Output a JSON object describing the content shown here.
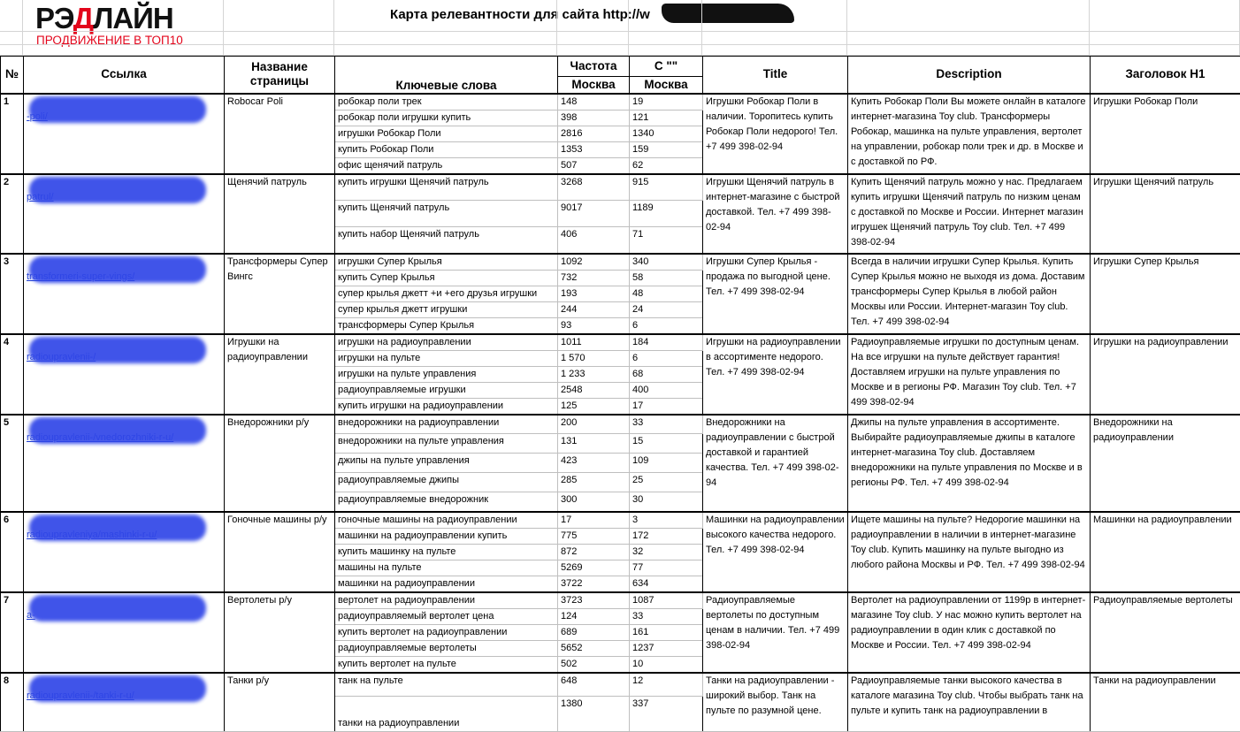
{
  "header": {
    "logo_part1": "РЭ",
    "logo_part2": "Д",
    "logo_part3": "ЛАЙН",
    "tagline": "ПРОДВИЖЕНИЕ В ТОП10",
    "title": "Карта релевантности для сайта http://w"
  },
  "table": {
    "columns": [
      "№",
      "Ссылка",
      "Название страницы",
      "Ключевые слова",
      "Частота",
      "С \"\"",
      "Title",
      "Description",
      "Заголовок H1"
    ],
    "subcolumns": [
      "Москва",
      "Москва"
    ],
    "rows": [
      {
        "num": "1",
        "link": "-poli/",
        "name": "Robocar Poli",
        "keywords": [
          [
            "робокар поли трек",
            "148",
            "19"
          ],
          [
            "робокар поли игрушки купить",
            "398",
            "121"
          ],
          [
            "игрушки Робокар Поли",
            "2816",
            "1340"
          ],
          [
            "купить Робокар Поли",
            "1353",
            "159"
          ],
          [
            "офис щенячий патруль",
            "507",
            "62"
          ]
        ],
        "title": "Игрушки Робокар Поли в наличии. Торопитесь купить Робокар Поли недорого! Тел. +7 499 398-02-94",
        "description": "Купить Робокар Поли Вы можете онлайн в каталоге интернет-магазина Toy club. Трансформеры Робокар, машинка на пульте управления, вертолет на управлении, робокар поли трек и др. в Москве и с доставкой по РФ.",
        "h1": "Игрушки Робокар Поли"
      },
      {
        "num": "2",
        "link": "patrul/",
        "name": "Щенячий патруль",
        "keywords": [
          [
            "купить игрушки Щенячий патруль",
            "3268",
            "915"
          ],
          [
            "купить Щенячий патруль",
            "9017",
            "1189"
          ],
          [
            "купить набор Щенячий патруль",
            "406",
            "71"
          ]
        ],
        "title": "Игрушки Щенячий патруль в интернет-магазине с быстрой доставкой. Тел. +7 499 398-02-94",
        "description": "Купить Щенячий патруль можно у нас. Предлагаем купить игрушки Щенячий патруль по низким ценам с доставкой по Москве и России. Интернет магазин игрушек Щенячий патруль Toy club. Тел. +7 499 398-02-94",
        "h1": "Игрушки Щенячий патруль"
      },
      {
        "num": "3",
        "link": "transformeri-super-vings/",
        "name": "Трансформеры Супер Вингс",
        "keywords": [
          [
            "игрушки Супер Крылья",
            "1092",
            "340"
          ],
          [
            "купить Супер Крылья",
            "732",
            "58"
          ],
          [
            "супер крылья джетт +и +его друзья игрушки",
            "193",
            "48"
          ],
          [
            "супер крылья джетт игрушки",
            "244",
            "24"
          ],
          [
            "трансформеры Супер Крылья",
            "93",
            "6"
          ]
        ],
        "title": "Игрушки Супер Крылья - продажа по выгодной цене. Тел. +7 499 398-02-94",
        "description": "Всегда в наличии игрушки Супер Крылья. Купить Супер Крылья можно не выходя из дома. Доставим трансформеры Супер Крылья в любой район Москвы или России. Интернет-магазин Toy club. Тел. +7 499 398-02-94",
        "h1": "Игрушки Супер Крылья"
      },
      {
        "num": "4",
        "link": "radioupravlenii-/",
        "name": "Игрушки на радиоуправлении",
        "keywords": [
          [
            "игрушки на радиоуправлении",
            "1011",
            "184"
          ],
          [
            "игрушки на пульте",
            "1 570",
            "6"
          ],
          [
            "игрушки на пульте управления",
            "1 233",
            "68"
          ],
          [
            "радиоуправляемые игрушки",
            "2548",
            "400"
          ],
          [
            "купить игрушки на радиоуправлении",
            "125",
            "17"
          ]
        ],
        "title": "Игрушки на радиоуправлении в ассортименте недорого. Тел. +7 499 398-02-94",
        "description": "Радиоуправляемые игрушки по доступным ценам. На все игрушки на пульте действует гарантия! Доставляем игрушки на пульте управления по Москве и в регионы РФ. Магазин Toy club. Тел. +7 499 398-02-94",
        "h1": "Игрушки на радиоуправлении"
      },
      {
        "num": "5",
        "link": "radioupravlenii-/vnedorozhniki-r-u/",
        "name": "Внедорожники р/у",
        "keywords": [
          [
            "внедорожники на радиоуправлении",
            "200",
            "33"
          ],
          [
            "внедорожники на пульте управления",
            "131",
            "15"
          ],
          [
            "джипы на пульте управления",
            "423",
            "109"
          ],
          [
            "радиоуправляемые джипы",
            "285",
            "25"
          ],
          [
            "радиоуправляемые внедорожник",
            "300",
            "30"
          ]
        ],
        "title": "Внедорожники на радиоуправлении с быстрой доставкой и гарантией качества. Тел. +7 499 398-02-94",
        "description": "Джипы на пульте управления в ассортименте. Выбирайте радиоуправляемые джипы в каталоге интернет-магазина Toy club. Доставляем внедорожники на пульте управления по Москве и в регионы РФ. Тел. +7 499 398-02-94",
        "h1": "Внедорожники на радиоуправлении"
      },
      {
        "num": "6",
        "link": "radioupravleniya/mashinki-r-u/",
        "name": "Гоночные машины р/у",
        "keywords": [
          [
            "гоночные машины на радиоуправлении",
            "17",
            "3"
          ],
          [
            "машинки на радиоуправлении купить",
            "775",
            "172"
          ],
          [
            "купить машинку на пульте",
            "872",
            "32"
          ],
          [
            "машины на пульте",
            "5269",
            "77"
          ],
          [
            "машинки на радиоуправлении",
            "3722",
            "634"
          ]
        ],
        "title": "Машинки на радиоуправлении высокого качества недорого. Тел. +7 499 398-02-94",
        "description": "Ищете машины на пульте? Недорогие машинки на радиоуправлении в наличии в интернет-магазине Toy club. Купить машинку на пульте выгодно из любого района Москвы и РФ. Тел. +7 499 398-02-94",
        "h1": "Машинки на радиоуправлении"
      },
      {
        "num": "7",
        "link": "a-",
        "name": "Вертолеты р/у",
        "keywords": [
          [
            "вертолет на радиоуправлении",
            "3723",
            "1087"
          ],
          [
            "радиоуправляемый вертолет цена",
            "124",
            "33"
          ],
          [
            "купить вертолет на радиоуправлении",
            "689",
            "161"
          ],
          [
            "радиоуправляемые вертолеты",
            "5652",
            "1237"
          ],
          [
            "купить вертолет на пульте",
            "502",
            "10"
          ]
        ],
        "title": "Радиоуправляемые вертолеты по доступным ценам в наличии. Тел. +7 499 398-02-94",
        "description": "Вертолет на радиоуправлении от 1199р в интернет-магазине Toy club. У нас можно купить вертолет на радиоуправлении в один клик с доставкой по Москве и России. Тел. +7 499 398-02-94",
        "h1": "Радиоуправляемые вертолеты"
      },
      {
        "num": "8",
        "link": "radioupravlenii-/tanki-r-u/",
        "name": "Танки р/у",
        "keywords": [
          [
            "танк на пульте",
            "648",
            "12"
          ],
          [
            "танки на радиоуправлении",
            "1380",
            "337"
          ]
        ],
        "title": "Танки на радиоуправлении - широкий выбор. Танк на пульте по разумной цене.",
        "description": "Радиоуправляемые танки высокого качества в каталоге магазина Toy club. Чтобы выбрать танк на пульте и купить танк на радиоуправлении в",
        "h1": "Танки на радиоуправлении"
      }
    ]
  }
}
